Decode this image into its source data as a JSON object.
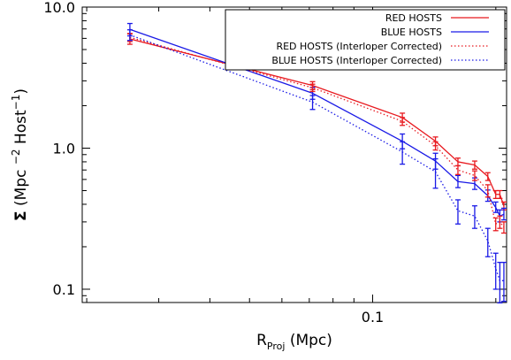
{
  "chart_data": {
    "type": "line",
    "xscale": "log",
    "yscale": "log",
    "xlim": [
      0.0195,
      0.2125
    ],
    "ylim": [
      0.0805,
      10.0
    ],
    "x_ticks": [
      {
        "value": 0.1,
        "label": "0.1"
      }
    ],
    "y_ticks": [
      {
        "value": 0.1,
        "label": "0.1"
      },
      {
        "value": 1.0,
        "label": "1.0"
      },
      {
        "value": 10.0,
        "label": "10.0"
      }
    ],
    "xlabel": {
      "main": "R",
      "sub": "Proj",
      "rest": " (Mpc)"
    },
    "ylabel": {
      "symbol": "Σ",
      "text": " (Mpc ",
      "exp1": "−2",
      "mid": " Host",
      "exp2": "−1",
      "end": ")"
    },
    "legend": {
      "position": "top-right"
    },
    "series": [
      {
        "name": "RED HOSTS",
        "color": "#e8191f",
        "style": "solid",
        "x": [
          0.0255,
          0.0713,
          0.1182,
          0.1424,
          0.1616,
          0.1776,
          0.1912,
          0.1999,
          0.2046,
          0.2093
        ],
        "y": [
          5.95,
          2.78,
          1.65,
          1.12,
          0.8,
          0.76,
          0.63,
          0.47,
          0.47,
          0.39
        ],
        "err_lo": [
          5.45,
          2.6,
          1.53,
          1.04,
          0.75,
          0.71,
          0.59,
          0.44,
          0.44,
          0.365
        ],
        "err_hi": [
          6.45,
          2.96,
          1.77,
          1.2,
          0.85,
          0.81,
          0.67,
          0.5,
          0.5,
          0.415
        ]
      },
      {
        "name": "BLUE HOSTS",
        "color": "#1a1ae6",
        "style": "solid",
        "x": [
          0.0255,
          0.0713,
          0.1182,
          0.1424,
          0.1616,
          0.1776,
          0.1912,
          0.1999,
          0.2046,
          0.2093
        ],
        "y": [
          6.95,
          2.45,
          1.12,
          0.81,
          0.58,
          0.56,
          0.46,
          0.38,
          0.33,
          0.34
        ],
        "err_lo": [
          6.25,
          2.22,
          0.99,
          0.71,
          0.525,
          0.51,
          0.42,
          0.35,
          0.3,
          0.31
        ],
        "err_hi": [
          7.65,
          2.7,
          1.26,
          0.92,
          0.64,
          0.615,
          0.505,
          0.415,
          0.365,
          0.375
        ]
      },
      {
        "name": "RED HOSTS (Interloper Corrected)",
        "color": "#e8191f",
        "style": "dotted",
        "x": [
          0.0255,
          0.0713,
          0.1182,
          0.1424,
          0.1616,
          0.1776,
          0.1912,
          0.1999,
          0.2046,
          0.2093
        ],
        "y": [
          6.1,
          2.68,
          1.55,
          1.04,
          0.7,
          0.64,
          0.5,
          0.29,
          0.3,
          0.275
        ],
        "err_lo": [
          5.7,
          2.52,
          1.45,
          0.97,
          0.65,
          0.59,
          0.45,
          0.26,
          0.27,
          0.25
        ],
        "err_hi": [
          6.5,
          2.84,
          1.65,
          1.11,
          0.75,
          0.69,
          0.55,
          0.32,
          0.33,
          0.3
        ]
      },
      {
        "name": "BLUE HOSTS (Interloper Corrected)",
        "color": "#1a1ae6",
        "style": "dotted",
        "x": [
          0.0255,
          0.0713,
          0.1182,
          0.1424,
          0.1616,
          0.1776,
          0.1912,
          0.1999,
          0.2046,
          0.2093
        ],
        "y": [
          6.35,
          2.12,
          0.94,
          0.68,
          0.36,
          0.33,
          0.22,
          0.14,
          0.115,
          0.115
        ],
        "err_lo": [
          5.8,
          1.88,
          0.77,
          0.52,
          0.29,
          0.27,
          0.17,
          0.1,
          0.08,
          0.082
        ],
        "err_hi": [
          6.9,
          2.36,
          1.11,
          0.84,
          0.43,
          0.39,
          0.27,
          0.18,
          0.155,
          0.155
        ]
      }
    ]
  }
}
